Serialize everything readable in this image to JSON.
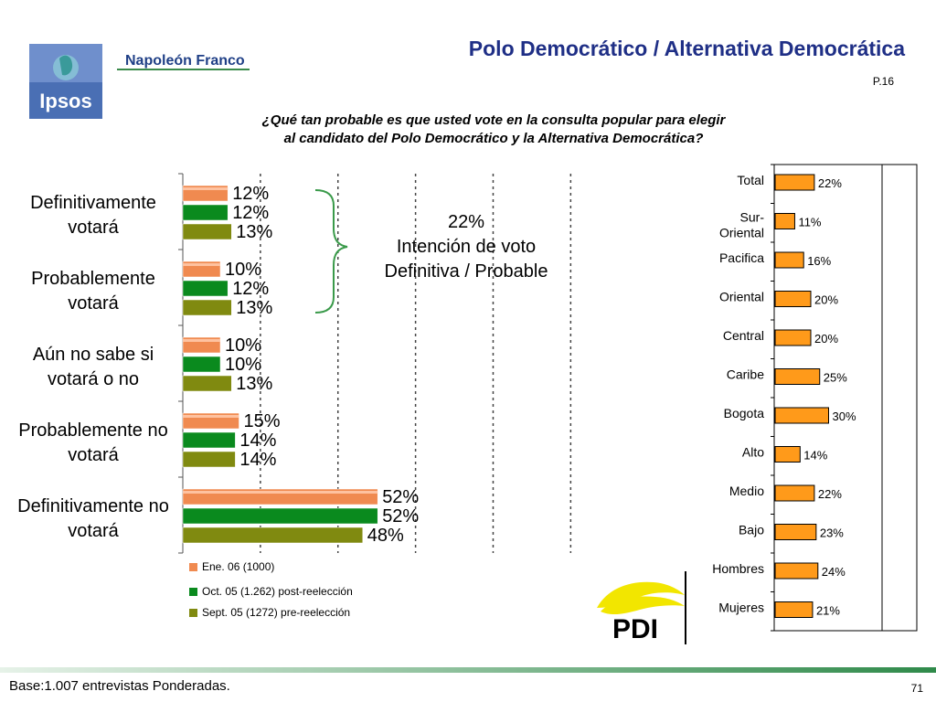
{
  "header": {
    "title": "Polo Democrático / Alternativa Democrática",
    "page_ref": "P.16",
    "logo_text": "Ipsos",
    "brand_text": "Napoleón Franco"
  },
  "question": "¿Qué tan probable es que usted vote en la consulta popular para elegir al candidato del Polo Democrático y la Alternativa Democrática?",
  "annotation": {
    "line1": "22%",
    "line2": "Intención de voto",
    "line3": "Definitiva / Probable"
  },
  "legend": [
    {
      "label": "Ene. 06 (1000)",
      "color": "#f08a50"
    },
    {
      "label": "Oct. 05 (1.262) post-reelección",
      "color": "#0a8a1e"
    },
    {
      "label": "Sept. 05 (1272) pre-reelección",
      "color": "#808a10"
    }
  ],
  "footer": {
    "base": "Base:1.007 entrevistas Ponderadas.",
    "page_number": "71"
  },
  "pdi_logo_text": "PDI",
  "chart_data": [
    {
      "type": "bar",
      "orientation": "horizontal",
      "categories": [
        [
          "Definitivamente",
          "votará"
        ],
        [
          "Probablemente",
          "votará"
        ],
        [
          "Aún no sabe si",
          "votará o no"
        ],
        [
          "Probablemente no",
          "votará"
        ],
        [
          "Definitivamente no",
          "votará"
        ]
      ],
      "series": [
        {
          "name": "Ene. 06 (1000)",
          "values": [
            12,
            10,
            10,
            15,
            52
          ],
          "color": "#f08a50"
        },
        {
          "name": "Oct. 05 (1.262) post-reelección",
          "values": [
            12,
            12,
            10,
            14,
            52
          ],
          "color": "#0a8a1e"
        },
        {
          "name": "Sept. 05 (1272) pre-reelección",
          "values": [
            13,
            13,
            13,
            14,
            48
          ],
          "color": "#808a10"
        }
      ],
      "value_suffix": "%",
      "xlim": [
        0,
        100
      ],
      "grid": "vertical dashed"
    },
    {
      "type": "bar",
      "orientation": "horizontal",
      "categories": [
        [
          "Total"
        ],
        [
          "Sur-",
          "Oriental"
        ],
        [
          "Pacifica"
        ],
        [
          "Oriental"
        ],
        [
          "Central"
        ],
        [
          "Caribe"
        ],
        [
          "Bogota"
        ],
        [
          "Alto"
        ],
        [
          "Medio"
        ],
        [
          "Bajo"
        ],
        [
          "Hombres"
        ],
        [
          "Mujeres"
        ]
      ],
      "values": [
        22,
        11,
        16,
        20,
        20,
        25,
        30,
        14,
        22,
        23,
        24,
        21
      ],
      "value_suffix": "%",
      "color": "#ff9a1a",
      "xlim": [
        0,
        80
      ]
    }
  ]
}
